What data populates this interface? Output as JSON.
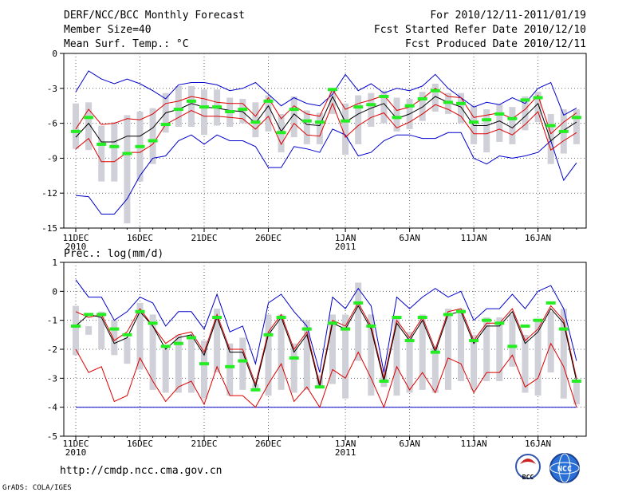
{
  "header": {
    "title": "DERF/NCC/BCC Monthly Forecast",
    "member_size": "Member Size=40",
    "variable": "Mean Surf. Temp.: °C",
    "forecast_period": "For 2010/12/11-2011/01/19",
    "started_date": "Fcst Started Refer Date 2010/12/10",
    "produced_date": "Fcst Produced Date 2010/12/11"
  },
  "footer": {
    "url": "http://cmdp.ncc.cma.gov.cn",
    "grads_credit": "GrADS: COLA/IGES",
    "logo_bcc": "BCC",
    "logo_ncc": "NCC"
  },
  "colors": {
    "envelope": "#0000cc",
    "spread": "#dd0000",
    "mean": "#000000",
    "box": "#d0d0d8",
    "median": "#22ee22",
    "grid": "#666666"
  },
  "chart_data": [
    {
      "type": "line",
      "title": "Mean Surf. Temp.: °C",
      "ylim": [
        -15,
        0
      ],
      "yticks": [
        0,
        -3,
        -6,
        -9,
        -12,
        -15
      ],
      "ytick_labels": [
        "0",
        "-3",
        "-6",
        "-9",
        "-12",
        "-15"
      ],
      "xlabel_ticks": [
        {
          "day": 1,
          "label": "11DEC",
          "sub": "2010"
        },
        {
          "day": 6,
          "label": "16DEC",
          "sub": ""
        },
        {
          "day": 11,
          "label": "21DEC",
          "sub": ""
        },
        {
          "day": 16,
          "label": "26DEC",
          "sub": ""
        },
        {
          "day": 22,
          "label": "1JAN",
          "sub": "2011"
        },
        {
          "day": 27,
          "label": "6JAN",
          "sub": ""
        },
        {
          "day": 32,
          "label": "11JAN",
          "sub": ""
        },
        {
          "day": 37,
          "label": "16JAN",
          "sub": ""
        }
      ],
      "x": [
        1,
        2,
        3,
        4,
        5,
        6,
        7,
        8,
        9,
        10,
        11,
        12,
        13,
        14,
        15,
        16,
        17,
        18,
        19,
        20,
        21,
        22,
        23,
        24,
        25,
        26,
        27,
        28,
        29,
        30,
        31,
        32,
        33,
        34,
        35,
        36,
        37,
        38,
        39,
        40
      ],
      "series": [
        {
          "name": "ensemble max",
          "values": [
            -3.3,
            -1.5,
            -2.2,
            -2.6,
            -2.2,
            -2.6,
            -3.2,
            -3.9,
            -2.7,
            -2.5,
            -2.5,
            -2.7,
            -3.2,
            -3.0,
            -2.5,
            -3.5,
            -4.5,
            -3.8,
            -4.3,
            -4.5,
            -3.5,
            -1.8,
            -3.2,
            -2.6,
            -3.4,
            -3.0,
            -3.2,
            -2.8,
            -1.8,
            -3.0,
            -3.8,
            -4.6,
            -4.2,
            -4.4,
            -3.8,
            -4.3,
            -3.0,
            -2.5,
            -5.3,
            -4.7
          ]
        },
        {
          "name": "ensemble min",
          "values": [
            -12.2,
            -12.3,
            -13.8,
            -13.8,
            -12.5,
            -10.5,
            -9.0,
            -8.8,
            -7.5,
            -7.0,
            -7.8,
            -7.0,
            -7.5,
            -7.5,
            -8.0,
            -9.8,
            -9.8,
            -8.0,
            -8.2,
            -8.5,
            -6.5,
            -7.0,
            -8.8,
            -8.5,
            -7.5,
            -7.0,
            -7.0,
            -7.3,
            -7.3,
            -6.8,
            -6.8,
            -9.0,
            -9.5,
            -8.8,
            -9.0,
            -8.8,
            -8.5,
            -7.5,
            -10.9,
            -9.4
          ]
        },
        {
          "name": "mean plus spread",
          "values": [
            -6.5,
            -4.8,
            -6.1,
            -6.0,
            -5.6,
            -5.7,
            -5.2,
            -4.3,
            -4.1,
            -3.7,
            -3.9,
            -4.2,
            -4.3,
            -4.3,
            -5.4,
            -3.8,
            -5.6,
            -4.5,
            -5.2,
            -5.4,
            -3.1,
            -4.8,
            -4.3,
            -4.0,
            -3.6,
            -4.9,
            -4.6,
            -3.9,
            -3.0,
            -3.7,
            -3.8,
            -5.5,
            -5.3,
            -5.1,
            -5.6,
            -4.8,
            -3.6,
            -6.9,
            -5.9,
            -5.1
          ]
        },
        {
          "name": "ensemble mean",
          "values": [
            -7.2,
            -6.0,
            -7.6,
            -7.6,
            -7.1,
            -7.1,
            -6.4,
            -5.1,
            -4.8,
            -4.3,
            -4.6,
            -4.7,
            -4.9,
            -5.0,
            -6.0,
            -4.5,
            -6.7,
            -5.2,
            -6.1,
            -6.2,
            -3.7,
            -5.9,
            -5.2,
            -4.7,
            -4.3,
            -5.6,
            -5.2,
            -4.6,
            -3.7,
            -4.2,
            -4.6,
            -6.2,
            -6.2,
            -5.8,
            -6.4,
            -5.4,
            -4.3,
            -7.5,
            -6.6,
            -5.9
          ]
        },
        {
          "name": "mean minus spread",
          "values": [
            -8.2,
            -7.3,
            -9.3,
            -9.3,
            -8.5,
            -8.5,
            -7.8,
            -6.1,
            -5.5,
            -4.9,
            -5.4,
            -5.4,
            -5.5,
            -5.6,
            -6.5,
            -5.4,
            -7.8,
            -6.0,
            -7.0,
            -7.1,
            -4.3,
            -7.2,
            -6.2,
            -5.5,
            -5.1,
            -6.4,
            -5.9,
            -5.2,
            -4.4,
            -4.8,
            -5.4,
            -6.9,
            -6.9,
            -6.5,
            -7.0,
            -6.1,
            -5.0,
            -8.3,
            -7.5,
            -6.8
          ]
        },
        {
          "name": "box upper",
          "values": [
            -4.3,
            -4.2,
            -6.2,
            -5.9,
            -5.3,
            -5.0,
            -4.7,
            -3.4,
            -2.8,
            -2.8,
            -3.1,
            -3.1,
            -3.8,
            -3.9,
            -4.2,
            -3.6,
            -5.2,
            -3.7,
            -4.9,
            -5.1,
            -3.1,
            -4.3,
            -3.6,
            -3.4,
            -3.2,
            -3.8,
            -3.9,
            -3.3,
            -2.6,
            -3.4,
            -3.4,
            -4.5,
            -4.8,
            -4.4,
            -4.6,
            -3.7,
            -3.3,
            -5.2,
            -4.8,
            -4.8
          ]
        },
        {
          "name": "box lower",
          "values": [
            -8.2,
            -8.3,
            -11.0,
            -11.0,
            -14.6,
            -11.0,
            -9.5,
            -6.8,
            -6.3,
            -6.3,
            -7.0,
            -6.2,
            -6.3,
            -6.0,
            -7.2,
            -6.7,
            -8.5,
            -7.2,
            -7.8,
            -7.8,
            -5.2,
            -8.7,
            -7.8,
            -6.3,
            -6.0,
            -6.7,
            -6.5,
            -5.8,
            -5.0,
            -5.2,
            -6.0,
            -7.8,
            -8.5,
            -7.6,
            -7.8,
            -6.6,
            -5.9,
            -9.5,
            -8.6,
            -7.8
          ]
        },
        {
          "name": "median",
          "values": [
            -6.7,
            -5.5,
            -7.8,
            -8.0,
            -8.6,
            -8.0,
            -7.5,
            -6.1,
            -4.8,
            -4.1,
            -4.6,
            -4.6,
            -5.0,
            -4.8,
            -5.9,
            -4.1,
            -6.8,
            -4.8,
            -5.8,
            -5.9,
            -3.1,
            -5.8,
            -4.6,
            -4.4,
            -3.7,
            -5.5,
            -4.5,
            -3.9,
            -3.2,
            -4.2,
            -4.3,
            -5.9,
            -5.7,
            -5.2,
            -5.6,
            -4.0,
            -3.8,
            -6.2,
            -6.7,
            -5.5
          ]
        }
      ]
    },
    {
      "type": "line",
      "title": "Prec.: log(mm/d)",
      "ylim": [
        -5,
        1
      ],
      "yticks": [
        1,
        0,
        -1,
        -2,
        -3,
        -4,
        -5
      ],
      "ytick_labels": [
        "1",
        "0",
        "-1",
        "-2",
        "-3",
        "-4",
        "-5"
      ],
      "xlabel_ticks": [
        {
          "day": 1,
          "label": "11DEC",
          "sub": "2010"
        },
        {
          "day": 6,
          "label": "16DEC",
          "sub": ""
        },
        {
          "day": 11,
          "label": "21DEC",
          "sub": ""
        },
        {
          "day": 16,
          "label": "26DEC",
          "sub": ""
        },
        {
          "day": 22,
          "label": "1JAN",
          "sub": "2011"
        },
        {
          "day": 27,
          "label": "6JAN",
          "sub": ""
        },
        {
          "day": 32,
          "label": "11JAN",
          "sub": ""
        },
        {
          "day": 37,
          "label": "16JAN",
          "sub": ""
        }
      ],
      "x": [
        1,
        2,
        3,
        4,
        5,
        6,
        7,
        8,
        9,
        10,
        11,
        12,
        13,
        14,
        15,
        16,
        17,
        18,
        19,
        20,
        21,
        22,
        23,
        24,
        25,
        26,
        27,
        28,
        29,
        30,
        31,
        32,
        33,
        34,
        35,
        36,
        37,
        38,
        39,
        40
      ],
      "series": [
        {
          "name": "ensemble max",
          "values": [
            0.4,
            -0.2,
            -0.2,
            -1.0,
            -0.7,
            -0.2,
            -0.4,
            -1.2,
            -0.7,
            -0.7,
            -1.3,
            -0.1,
            -1.4,
            -1.2,
            -2.5,
            -0.4,
            -0.1,
            -0.7,
            -1.2,
            -2.8,
            -0.2,
            -0.6,
            0.1,
            -0.5,
            -2.8,
            -0.2,
            -0.6,
            -0.2,
            0.1,
            -0.2,
            0.0,
            -1.0,
            -0.6,
            -0.6,
            -0.1,
            -0.6,
            0.0,
            0.2,
            -0.6,
            -2.4
          ]
        },
        {
          "name": "ensemble min",
          "values": [
            -4.0,
            -4.0,
            -4.0,
            -4.0,
            -4.0,
            -4.0,
            -4.0,
            -4.0,
            -4.0,
            -4.0,
            -4.0,
            -4.0,
            -4.0,
            -4.0,
            -4.0,
            -4.0,
            -4.0,
            -4.0,
            -4.0,
            -4.0,
            -4.0,
            -4.0,
            -4.0,
            -4.0,
            -4.0,
            -4.0,
            -4.0,
            -4.0,
            -4.0,
            -4.0,
            -4.0,
            -4.0,
            -4.0,
            -4.0,
            -4.0,
            -4.0,
            -4.0,
            -4.0,
            -4.0,
            -4.0
          ]
        },
        {
          "name": "mean plus spread",
          "values": [
            -0.7,
            -0.9,
            -0.8,
            -1.7,
            -1.4,
            -0.6,
            -1.2,
            -1.8,
            -1.5,
            -1.4,
            -2.1,
            -0.8,
            -2.0,
            -2.0,
            -3.2,
            -1.4,
            -0.8,
            -2.0,
            -1.4,
            -3.2,
            -1.0,
            -1.2,
            -0.4,
            -1.2,
            -3.0,
            -1.0,
            -1.6,
            -0.9,
            -2.0,
            -0.7,
            -0.6,
            -1.7,
            -1.1,
            -1.1,
            -0.6,
            -1.7,
            -1.3,
            -0.5,
            -1.0,
            -3.0
          ]
        },
        {
          "name": "ensemble mean",
          "values": [
            -1.2,
            -0.8,
            -0.9,
            -1.8,
            -1.6,
            -0.7,
            -1.2,
            -2.0,
            -1.6,
            -1.5,
            -2.2,
            -0.9,
            -2.1,
            -2.1,
            -3.3,
            -1.5,
            -0.9,
            -2.1,
            -1.5,
            -3.3,
            -1.1,
            -1.3,
            -0.5,
            -1.3,
            -3.1,
            -1.1,
            -1.7,
            -1.0,
            -2.1,
            -0.8,
            -0.7,
            -1.8,
            -1.2,
            -1.2,
            -0.7,
            -1.8,
            -1.4,
            -0.6,
            -1.1,
            -3.1
          ]
        },
        {
          "name": "mean minus spread",
          "values": [
            -2.0,
            -2.8,
            -2.6,
            -3.8,
            -3.6,
            -2.3,
            -3.1,
            -3.8,
            -3.3,
            -3.1,
            -3.9,
            -2.6,
            -3.6,
            -3.6,
            -4.0,
            -3.2,
            -2.5,
            -3.8,
            -3.3,
            -4.0,
            -2.7,
            -3.0,
            -2.1,
            -3.0,
            -4.0,
            -2.6,
            -3.4,
            -2.8,
            -3.5,
            -2.3,
            -2.5,
            -3.5,
            -2.8,
            -2.8,
            -2.2,
            -3.3,
            -3.0,
            -1.8,
            -2.6,
            -4.0
          ]
        },
        {
          "name": "box upper",
          "values": [
            -0.5,
            -1.2,
            -0.7,
            -1.0,
            -1.6,
            -0.4,
            -0.8,
            -2.0,
            -1.5,
            -1.5,
            -1.7,
            -0.6,
            -1.8,
            -1.6,
            -3.2,
            -0.8,
            -0.8,
            -1.8,
            -1.0,
            -2.9,
            -0.8,
            -0.8,
            0.3,
            -0.8,
            -2.8,
            -0.9,
            -1.4,
            -0.8,
            -1.9,
            -0.6,
            -0.6,
            -1.5,
            -0.9,
            -0.9,
            -0.8,
            -1.5,
            -1.0,
            -0.7,
            -0.6,
            -3.1
          ]
        },
        {
          "name": "box lower",
          "values": [
            -2.2,
            -1.5,
            -2.0,
            -2.2,
            -2.5,
            -2.7,
            -3.4,
            -3.5,
            -3.5,
            -3.5,
            -3.7,
            -2.8,
            -3.6,
            -3.4,
            -3.4,
            -3.6,
            -3.4,
            -3.5,
            -3.4,
            -3.3,
            -3.2,
            -3.7,
            -2.4,
            -3.6,
            -3.3,
            -3.6,
            -3.5,
            -3.4,
            -3.5,
            -3.4,
            -3.1,
            -3.4,
            -3.1,
            -3.1,
            -2.6,
            -3.5,
            -3.6,
            -2.8,
            -3.7,
            -3.9
          ]
        },
        {
          "name": "median",
          "values": [
            -1.2,
            -0.8,
            -0.8,
            -1.3,
            -1.5,
            -0.7,
            -1.1,
            -1.9,
            -1.8,
            -1.6,
            -2.5,
            -0.9,
            -2.6,
            -2.4,
            -3.4,
            -1.5,
            -0.9,
            -2.3,
            -1.3,
            -3.3,
            -1.1,
            -1.3,
            -0.4,
            -1.2,
            -3.1,
            -0.9,
            -1.7,
            -0.9,
            -2.1,
            -0.8,
            -0.7,
            -1.7,
            -1.0,
            -1.1,
            -1.9,
            -1.2,
            -1.0,
            -0.4,
            -1.3,
            -3.1
          ]
        }
      ]
    }
  ]
}
